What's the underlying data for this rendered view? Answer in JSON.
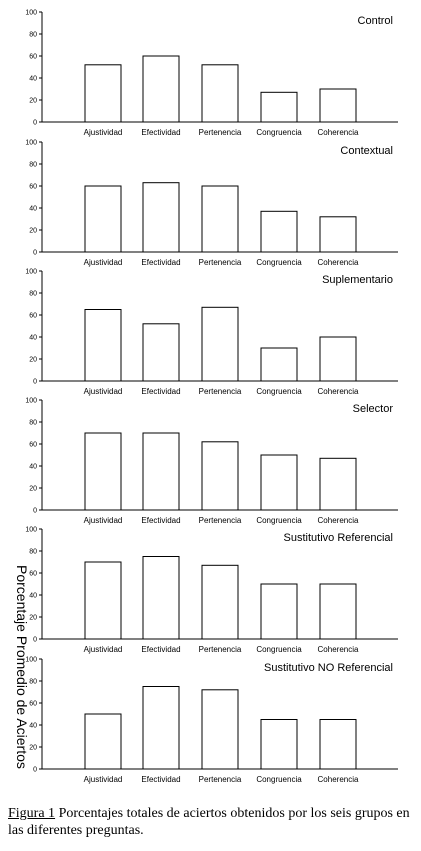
{
  "y_axis_label": "Porcentaje Promedio de Aciertos",
  "caption": {
    "label": "Figura 1",
    "text": " Porcentajes totales de aciertos obtenidos por los seis grupos en las diferentes preguntas."
  },
  "chart_data": [
    {
      "type": "bar",
      "title": "Control",
      "categories": [
        "Ajustividad",
        "Efectividad",
        "Pertenencia",
        "Congruencia",
        "Coherencia"
      ],
      "values": [
        52,
        60,
        52,
        27,
        30
      ],
      "ylim": [
        0,
        100
      ],
      "yticks": [
        0,
        20,
        40,
        60,
        80,
        100
      ],
      "bar_fill": "#ffffff",
      "bar_stroke": "#000000",
      "grid": false
    },
    {
      "type": "bar",
      "title": "Contextual",
      "categories": [
        "Ajustividad",
        "Efectividad",
        "Pertenencia",
        "Congruencia",
        "Coherencia"
      ],
      "values": [
        60,
        63,
        60,
        37,
        32
      ],
      "ylim": [
        0,
        100
      ],
      "yticks": [
        0,
        20,
        40,
        60,
        80,
        100
      ],
      "bar_fill": "#ffffff",
      "bar_stroke": "#000000",
      "grid": false
    },
    {
      "type": "bar",
      "title": "Suplementario",
      "categories": [
        "Ajustividad",
        "Efectividad",
        "Pertenencia",
        "Congruencia",
        "Coherencia"
      ],
      "values": [
        65,
        52,
        67,
        30,
        40
      ],
      "ylim": [
        0,
        100
      ],
      "yticks": [
        0,
        20,
        40,
        60,
        80,
        100
      ],
      "bar_fill": "#ffffff",
      "bar_stroke": "#000000",
      "grid": false
    },
    {
      "type": "bar",
      "title": "Selector",
      "categories": [
        "Ajustividad",
        "Efectividad",
        "Pertenencia",
        "Congruencia",
        "Coherencia"
      ],
      "values": [
        70,
        70,
        62,
        50,
        47
      ],
      "ylim": [
        0,
        100
      ],
      "yticks": [
        0,
        20,
        40,
        60,
        80,
        100
      ],
      "bar_fill": "#ffffff",
      "bar_stroke": "#000000",
      "grid": false
    },
    {
      "type": "bar",
      "title": "Sustitutivo Referencial",
      "categories": [
        "Ajustividad",
        "Efectividad",
        "Pertenencia",
        "Congruencia",
        "Coherencia"
      ],
      "values": [
        70,
        75,
        67,
        50,
        50
      ],
      "ylim": [
        0,
        100
      ],
      "yticks": [
        0,
        20,
        40,
        60,
        80,
        100
      ],
      "bar_fill": "#ffffff",
      "bar_stroke": "#000000",
      "grid": false
    },
    {
      "type": "bar",
      "title": "Sustitutivo NO Referencial",
      "categories": [
        "Ajustividad",
        "Efectividad",
        "Pertenencia",
        "Congruencia",
        "Coherencia"
      ],
      "values": [
        50,
        75,
        72,
        45,
        45
      ],
      "ylim": [
        0,
        100
      ],
      "yticks": [
        0,
        20,
        40,
        60,
        80,
        100
      ],
      "bar_fill": "#ffffff",
      "bar_stroke": "#000000",
      "grid": false
    }
  ]
}
